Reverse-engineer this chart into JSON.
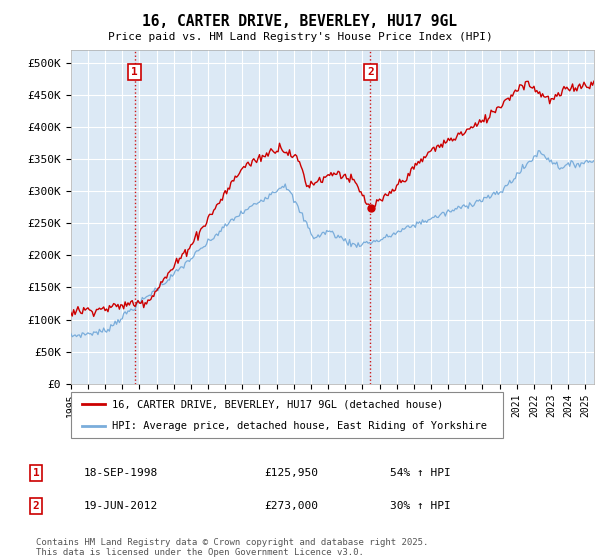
{
  "title": "16, CARTER DRIVE, BEVERLEY, HU17 9GL",
  "subtitle": "Price paid vs. HM Land Registry's House Price Index (HPI)",
  "ylim": [
    0,
    520000
  ],
  "yticks": [
    0,
    50000,
    100000,
    150000,
    200000,
    250000,
    300000,
    350000,
    400000,
    450000,
    500000
  ],
  "property_color": "#cc0000",
  "hpi_color": "#7aaddb",
  "vline_color": "#cc0000",
  "chart_bg": "#dce9f5",
  "purchase1": {
    "date_num": 1998.72,
    "price": 125950,
    "label": "1",
    "pct": "54% ↑ HPI",
    "date_str": "18-SEP-1998"
  },
  "purchase2": {
    "date_num": 2012.47,
    "price": 273000,
    "label": "2",
    "pct": "30% ↑ HPI",
    "date_str": "19-JUN-2012"
  },
  "legend_property": "16, CARTER DRIVE, BEVERLEY, HU17 9GL (detached house)",
  "legend_hpi": "HPI: Average price, detached house, East Riding of Yorkshire",
  "footnote": "Contains HM Land Registry data © Crown copyright and database right 2025.\nThis data is licensed under the Open Government Licence v3.0.",
  "xmin": 1995.0,
  "xmax": 2025.5
}
